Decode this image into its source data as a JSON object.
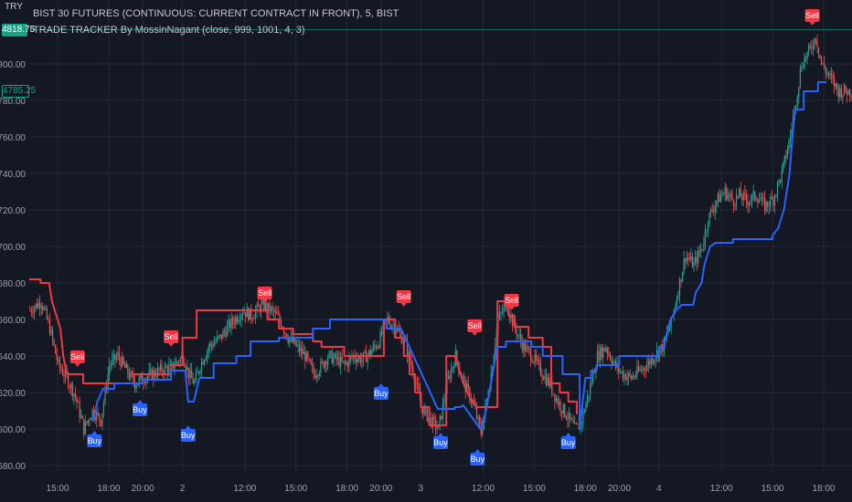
{
  "currency": "TRY",
  "header": {
    "symbol_line": "BIST 30 FUTURES (CONTINUOUS: CURRENT CONTRACT IN FRONT), 5, BIST",
    "indicator_line": "TRADE TRACKER By MossinNagant (close, 999, 1001, 4, 3)"
  },
  "price_badges": [
    {
      "value": "4818.75",
      "price": 4818.75,
      "style": "filled",
      "color": "#16a085"
    },
    {
      "value": "4785.25",
      "price": 4785.25,
      "style": "outline",
      "color": "#16a085"
    }
  ],
  "colors": {
    "background": "#141823",
    "grid": "#232836",
    "up": "#26a69a",
    "down": "#ef5350",
    "support": "#2962ff",
    "resistance": "#f23645",
    "text": "#9aa0ad"
  },
  "chart_data": {
    "type": "candlestick",
    "yaxis": {
      "min": 4575,
      "max": 4835,
      "ticks": [
        4580,
        4600,
        4620,
        4640,
        4660,
        4680,
        4700,
        4720,
        4740,
        4760,
        4780,
        4800
      ]
    },
    "xaxis": {
      "ticks": [
        {
          "label": "15:00",
          "t": 20
        },
        {
          "label": "18:00",
          "t": 56
        },
        {
          "label": "20:00",
          "t": 80
        },
        {
          "label": "2",
          "t": 108
        },
        {
          "label": "12:00",
          "t": 152
        },
        {
          "label": "15:00",
          "t": 188
        },
        {
          "label": "18:00",
          "t": 224
        },
        {
          "label": "20:00",
          "t": 248
        },
        {
          "label": "3",
          "t": 276
        },
        {
          "label": "12:00",
          "t": 320
        },
        {
          "label": "15:00",
          "t": 356
        },
        {
          "label": "18:00",
          "t": 392
        },
        {
          "label": "20:00",
          "t": 416
        },
        {
          "label": "4",
          "t": 444
        },
        {
          "label": "12:00",
          "t": 488
        },
        {
          "label": "15:00",
          "t": 524
        },
        {
          "label": "18:00",
          "t": 560
        }
      ]
    },
    "close_path": [
      [
        0,
        4665
      ],
      [
        8,
        4670
      ],
      [
        14,
        4655
      ],
      [
        20,
        4635
      ],
      [
        26,
        4628
      ],
      [
        32,
        4618
      ],
      [
        38,
        4600
      ],
      [
        44,
        4610
      ],
      [
        50,
        4605
      ],
      [
        56,
        4635
      ],
      [
        62,
        4640
      ],
      [
        68,
        4632
      ],
      [
        74,
        4625
      ],
      [
        80,
        4628
      ],
      [
        86,
        4630
      ],
      [
        92,
        4632
      ],
      [
        100,
        4634
      ],
      [
        108,
        4640
      ],
      [
        112,
        4630
      ],
      [
        116,
        4625
      ],
      [
        120,
        4635
      ],
      [
        126,
        4645
      ],
      [
        134,
        4650
      ],
      [
        142,
        4658
      ],
      [
        150,
        4665
      ],
      [
        156,
        4662
      ],
      [
        164,
        4668
      ],
      [
        170,
        4665
      ],
      [
        176,
        4660
      ],
      [
        182,
        4650
      ],
      [
        188,
        4645
      ],
      [
        194,
        4640
      ],
      [
        200,
        4630
      ],
      [
        206,
        4635
      ],
      [
        210,
        4640
      ],
      [
        216,
        4638
      ],
      [
        222,
        4635
      ],
      [
        228,
        4640
      ],
      [
        234,
        4638
      ],
      [
        240,
        4642
      ],
      [
        246,
        4648
      ],
      [
        252,
        4660
      ],
      [
        258,
        4655
      ],
      [
        264,
        4648
      ],
      [
        270,
        4632
      ],
      [
        276,
        4612
      ],
      [
        282,
        4605
      ],
      [
        288,
        4600
      ],
      [
        294,
        4625
      ],
      [
        300,
        4640
      ],
      [
        306,
        4625
      ],
      [
        312,
        4615
      ],
      [
        318,
        4598
      ],
      [
        324,
        4625
      ],
      [
        330,
        4660
      ],
      [
        336,
        4668
      ],
      [
        342,
        4655
      ],
      [
        348,
        4645
      ],
      [
        354,
        4640
      ],
      [
        360,
        4632
      ],
      [
        366,
        4625
      ],
      [
        372,
        4615
      ],
      [
        378,
        4608
      ],
      [
        384,
        4600
      ],
      [
        388,
        4602
      ],
      [
        394,
        4620
      ],
      [
        400,
        4640
      ],
      [
        406,
        4645
      ],
      [
        412,
        4635
      ],
      [
        418,
        4630
      ],
      [
        424,
        4628
      ],
      [
        430,
        4632
      ],
      [
        436,
        4636
      ],
      [
        440,
        4640
      ],
      [
        446,
        4645
      ],
      [
        452,
        4658
      ],
      [
        458,
        4680
      ],
      [
        462,
        4695
      ],
      [
        468,
        4690
      ],
      [
        474,
        4700
      ],
      [
        478,
        4715
      ],
      [
        484,
        4725
      ],
      [
        490,
        4730
      ],
      [
        496,
        4725
      ],
      [
        500,
        4728
      ],
      [
        506,
        4725
      ],
      [
        512,
        4728
      ],
      [
        518,
        4722
      ],
      [
        524,
        4726
      ],
      [
        530,
        4740
      ],
      [
        536,
        4760
      ],
      [
        540,
        4780
      ],
      [
        544,
        4800
      ],
      [
        550,
        4808
      ],
      [
        554,
        4815
      ],
      [
        558,
        4800
      ],
      [
        562,
        4795
      ],
      [
        566,
        4790
      ],
      [
        570,
        4785
      ]
    ],
    "resistance_line": [
      [
        0,
        4682
      ],
      [
        8,
        4682
      ],
      [
        8,
        4680
      ],
      [
        14,
        4680
      ],
      [
        16,
        4670
      ],
      [
        20,
        4660
      ],
      [
        22,
        4655
      ],
      [
        24,
        4640
      ],
      [
        26,
        4632
      ],
      [
        28,
        4630
      ],
      [
        38,
        4630
      ],
      [
        38,
        4625
      ],
      [
        74,
        4625
      ],
      [
        74,
        4630
      ],
      [
        100,
        4630
      ],
      [
        100,
        4635
      ],
      [
        108,
        4635
      ],
      [
        108,
        4650
      ],
      [
        118,
        4650
      ],
      [
        118,
        4665
      ],
      [
        168,
        4665
      ],
      [
        168,
        4660
      ],
      [
        176,
        4660
      ],
      [
        176,
        4655
      ],
      [
        186,
        4655
      ],
      [
        186,
        4652
      ],
      [
        200,
        4652
      ],
      [
        200,
        4648
      ],
      [
        206,
        4648
      ],
      [
        206,
        4645
      ],
      [
        222,
        4645
      ],
      [
        222,
        4640
      ],
      [
        250,
        4640
      ],
      [
        250,
        4660
      ],
      [
        258,
        4660
      ],
      [
        258,
        4650
      ],
      [
        264,
        4650
      ],
      [
        264,
        4640
      ],
      [
        268,
        4640
      ],
      [
        268,
        4630
      ],
      [
        272,
        4630
      ],
      [
        272,
        4620
      ],
      [
        276,
        4620
      ],
      [
        276,
        4612
      ],
      [
        282,
        4612
      ],
      [
        282,
        4602
      ],
      [
        294,
        4602
      ],
      [
        294,
        4640
      ],
      [
        296,
        4640
      ],
      [
        300,
        4640
      ],
      [
        304,
        4630
      ],
      [
        306,
        4625
      ],
      [
        310,
        4618
      ],
      [
        312,
        4615
      ],
      [
        316,
        4612
      ],
      [
        318,
        4612
      ],
      [
        330,
        4612
      ],
      [
        330,
        4670
      ],
      [
        338,
        4670
      ],
      [
        338,
        4662
      ],
      [
        342,
        4662
      ],
      [
        342,
        4656
      ],
      [
        352,
        4656
      ],
      [
        352,
        4650
      ],
      [
        362,
        4650
      ],
      [
        362,
        4645
      ],
      [
        368,
        4645
      ],
      [
        368,
        4625
      ],
      [
        374,
        4625
      ],
      [
        374,
        4620
      ],
      [
        380,
        4620
      ],
      [
        380,
        4615
      ],
      [
        386,
        4615
      ],
      [
        386,
        4608
      ]
    ],
    "support_line": [
      [
        45,
        4604
      ],
      [
        48,
        4615
      ],
      [
        52,
        4622
      ],
      [
        60,
        4622
      ],
      [
        60,
        4625
      ],
      [
        80,
        4625
      ],
      [
        80,
        4627
      ],
      [
        100,
        4627
      ],
      [
        100,
        4632
      ],
      [
        110,
        4632
      ],
      [
        112,
        4615
      ],
      [
        116,
        4615
      ],
      [
        120,
        4628
      ],
      [
        130,
        4628
      ],
      [
        130,
        4636
      ],
      [
        146,
        4636
      ],
      [
        146,
        4640
      ],
      [
        156,
        4640
      ],
      [
        156,
        4648
      ],
      [
        176,
        4648
      ],
      [
        176,
        4650
      ],
      [
        200,
        4650
      ],
      [
        200,
        4655
      ],
      [
        212,
        4655
      ],
      [
        212,
        4660
      ],
      [
        252,
        4660
      ],
      [
        252,
        4655
      ],
      [
        254,
        4655
      ],
      [
        258,
        4655
      ],
      [
        262,
        4655
      ],
      [
        288,
        4611
      ],
      [
        300,
        4611
      ],
      [
        300,
        4612
      ],
      [
        304,
        4612
      ],
      [
        306,
        4613
      ],
      [
        318,
        4600
      ],
      [
        322,
        4610
      ],
      [
        330,
        4645
      ],
      [
        336,
        4645
      ],
      [
        336,
        4648
      ],
      [
        354,
        4648
      ],
      [
        354,
        4645
      ],
      [
        362,
        4645
      ],
      [
        362,
        4640
      ],
      [
        376,
        4640
      ],
      [
        376,
        4630
      ],
      [
        388,
        4630
      ],
      [
        388,
        4600
      ],
      [
        392,
        4628
      ],
      [
        396,
        4628
      ],
      [
        396,
        4632
      ],
      [
        400,
        4632
      ],
      [
        400,
        4635
      ],
      [
        416,
        4635
      ],
      [
        416,
        4640
      ],
      [
        444,
        4640
      ],
      [
        444,
        4645
      ],
      [
        448,
        4645
      ],
      [
        448,
        4648
      ],
      [
        452,
        4660
      ],
      [
        456,
        4665
      ],
      [
        460,
        4668
      ],
      [
        468,
        4668
      ],
      [
        470,
        4675
      ],
      [
        474,
        4680
      ],
      [
        476,
        4690
      ],
      [
        480,
        4700
      ],
      [
        484,
        4702
      ],
      [
        496,
        4702
      ],
      [
        496,
        4704
      ],
      [
        524,
        4704
      ],
      [
        524,
        4706
      ],
      [
        528,
        4710
      ],
      [
        532,
        4720
      ],
      [
        536,
        4740
      ],
      [
        538,
        4760
      ],
      [
        540,
        4775
      ],
      [
        546,
        4775
      ],
      [
        546,
        4785
      ],
      [
        556,
        4785
      ],
      [
        556,
        4790
      ],
      [
        562,
        4790
      ]
    ],
    "signals": [
      {
        "type": "Sell",
        "t": 34,
        "price": 4634
      },
      {
        "type": "Sell",
        "t": 100,
        "price": 4645
      },
      {
        "type": "Sell",
        "t": 166,
        "price": 4669
      },
      {
        "type": "Sell",
        "t": 264,
        "price": 4667
      },
      {
        "type": "Sell",
        "t": 314,
        "price": 4651
      },
      {
        "type": "Sell",
        "t": 340,
        "price": 4665
      },
      {
        "type": "Sell",
        "t": 552,
        "price": 4821
      },
      {
        "type": "Buy",
        "t": 46,
        "price": 4599
      },
      {
        "type": "Buy",
        "t": 78,
        "price": 4616
      },
      {
        "type": "Buy",
        "t": 112,
        "price": 4602
      },
      {
        "type": "Buy",
        "t": 248,
        "price": 4625
      },
      {
        "type": "Buy",
        "t": 290,
        "price": 4598
      },
      {
        "type": "Buy",
        "t": 316,
        "price": 4589
      },
      {
        "type": "Buy",
        "t": 380,
        "price": 4598
      }
    ],
    "num_bars": 580
  }
}
